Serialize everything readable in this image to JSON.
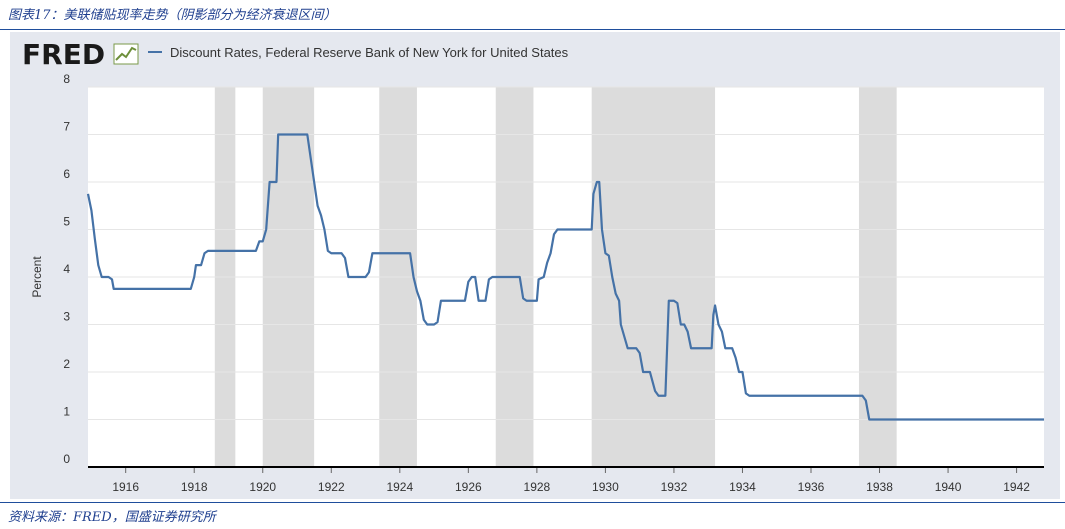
{
  "caption": "图表17：美联储贴现率走势（阴影部分为经济衰退区间）",
  "source": "资料来源：FRED，国盛证券研究所",
  "brand": "FRED",
  "colors": {
    "line": "#4572a7",
    "recession": "#dcdcdc",
    "plot_bg": "#ffffff",
    "frame_bg": "#e5e8ef",
    "axis": "#000000"
  },
  "icons": {
    "logo": "fred-graph-icon"
  },
  "chart_data": {
    "type": "line",
    "series": [
      {
        "name": "Discount Rates, Federal Reserve Bank of New York for United States",
        "points": [
          [
            1914.9,
            5.75
          ],
          [
            1915.0,
            5.4
          ],
          [
            1915.1,
            4.8
          ],
          [
            1915.2,
            4.25
          ],
          [
            1915.3,
            4.0
          ],
          [
            1915.5,
            4.0
          ],
          [
            1915.6,
            3.95
          ],
          [
            1915.65,
            3.75
          ],
          [
            1916.0,
            3.75
          ],
          [
            1917.0,
            3.75
          ],
          [
            1917.9,
            3.75
          ],
          [
            1918.0,
            4.0
          ],
          [
            1918.05,
            4.25
          ],
          [
            1918.2,
            4.25
          ],
          [
            1918.3,
            4.5
          ],
          [
            1918.4,
            4.55
          ],
          [
            1919.0,
            4.55
          ],
          [
            1919.5,
            4.55
          ],
          [
            1919.8,
            4.55
          ],
          [
            1919.9,
            4.75
          ],
          [
            1920.0,
            4.75
          ],
          [
            1920.1,
            5.0
          ],
          [
            1920.2,
            6.0
          ],
          [
            1920.4,
            6.0
          ],
          [
            1920.45,
            7.0
          ],
          [
            1921.0,
            7.0
          ],
          [
            1921.3,
            7.0
          ],
          [
            1921.4,
            6.5
          ],
          [
            1921.5,
            6.0
          ],
          [
            1921.6,
            5.5
          ],
          [
            1921.7,
            5.3
          ],
          [
            1921.8,
            5.0
          ],
          [
            1921.9,
            4.55
          ],
          [
            1922.0,
            4.5
          ],
          [
            1922.3,
            4.5
          ],
          [
            1922.4,
            4.4
          ],
          [
            1922.5,
            4.0
          ],
          [
            1922.7,
            4.0
          ],
          [
            1923.0,
            4.0
          ],
          [
            1923.1,
            4.1
          ],
          [
            1923.2,
            4.5
          ],
          [
            1923.5,
            4.5
          ],
          [
            1924.0,
            4.5
          ],
          [
            1924.3,
            4.5
          ],
          [
            1924.4,
            4.0
          ],
          [
            1924.5,
            3.7
          ],
          [
            1924.6,
            3.5
          ],
          [
            1924.7,
            3.1
          ],
          [
            1924.8,
            3.0
          ],
          [
            1925.0,
            3.0
          ],
          [
            1925.1,
            3.05
          ],
          [
            1925.2,
            3.5
          ],
          [
            1925.5,
            3.5
          ],
          [
            1925.8,
            3.5
          ],
          [
            1925.9,
            3.5
          ],
          [
            1926.0,
            3.9
          ],
          [
            1926.1,
            4.0
          ],
          [
            1926.2,
            4.0
          ],
          [
            1926.3,
            3.5
          ],
          [
            1926.5,
            3.5
          ],
          [
            1926.6,
            3.95
          ],
          [
            1926.7,
            4.0
          ],
          [
            1927.0,
            4.0
          ],
          [
            1927.5,
            4.0
          ],
          [
            1927.6,
            3.55
          ],
          [
            1927.7,
            3.5
          ],
          [
            1928.0,
            3.5
          ],
          [
            1928.05,
            3.95
          ],
          [
            1928.2,
            4.0
          ],
          [
            1928.3,
            4.3
          ],
          [
            1928.4,
            4.5
          ],
          [
            1928.5,
            4.9
          ],
          [
            1928.6,
            5.0
          ],
          [
            1929.0,
            5.0
          ],
          [
            1929.4,
            5.0
          ],
          [
            1929.6,
            5.0
          ],
          [
            1929.65,
            5.75
          ],
          [
            1929.75,
            6.0
          ],
          [
            1929.82,
            6.0
          ],
          [
            1929.9,
            5.0
          ],
          [
            1929.95,
            4.75
          ],
          [
            1930.0,
            4.5
          ],
          [
            1930.1,
            4.45
          ],
          [
            1930.2,
            4.0
          ],
          [
            1930.3,
            3.65
          ],
          [
            1930.4,
            3.5
          ],
          [
            1930.45,
            3.0
          ],
          [
            1930.55,
            2.75
          ],
          [
            1930.65,
            2.5
          ],
          [
            1930.8,
            2.5
          ],
          [
            1930.9,
            2.5
          ],
          [
            1931.0,
            2.4
          ],
          [
            1931.1,
            2.0
          ],
          [
            1931.3,
            2.0
          ],
          [
            1931.45,
            1.6
          ],
          [
            1931.55,
            1.5
          ],
          [
            1931.75,
            1.5
          ],
          [
            1931.8,
            2.5
          ],
          [
            1931.85,
            3.5
          ],
          [
            1932.0,
            3.5
          ],
          [
            1932.1,
            3.45
          ],
          [
            1932.2,
            3.0
          ],
          [
            1932.3,
            3.0
          ],
          [
            1932.4,
            2.85
          ],
          [
            1932.5,
            2.5
          ],
          [
            1933.0,
            2.5
          ],
          [
            1933.1,
            2.5
          ],
          [
            1933.15,
            3.2
          ],
          [
            1933.2,
            3.4
          ],
          [
            1933.3,
            3.0
          ],
          [
            1933.4,
            2.85
          ],
          [
            1933.5,
            2.5
          ],
          [
            1933.7,
            2.5
          ],
          [
            1933.8,
            2.3
          ],
          [
            1933.9,
            2.0
          ],
          [
            1934.0,
            2.0
          ],
          [
            1934.1,
            1.55
          ],
          [
            1934.2,
            1.5
          ],
          [
            1935.0,
            1.5
          ],
          [
            1936.0,
            1.5
          ],
          [
            1937.0,
            1.5
          ],
          [
            1937.5,
            1.5
          ],
          [
            1937.6,
            1.4
          ],
          [
            1937.7,
            1.0
          ],
          [
            1938.0,
            1.0
          ],
          [
            1939.0,
            1.0
          ],
          [
            1940.0,
            1.0
          ],
          [
            1941.0,
            1.0
          ],
          [
            1942.0,
            1.0
          ],
          [
            1942.8,
            1.0
          ]
        ]
      }
    ],
    "recessions": [
      [
        1918.6,
        1919.2
      ],
      [
        1920.0,
        1921.5
      ],
      [
        1923.4,
        1924.5
      ],
      [
        1926.8,
        1927.9
      ],
      [
        1929.6,
        1933.2
      ],
      [
        1937.4,
        1938.5
      ]
    ],
    "xlim": [
      1914.9,
      1942.8
    ],
    "ylim": [
      0,
      8
    ],
    "x_ticks": [
      1916,
      1918,
      1920,
      1922,
      1924,
      1926,
      1928,
      1930,
      1932,
      1934,
      1936,
      1938,
      1940,
      1942
    ],
    "y_ticks": [
      0,
      1,
      2,
      3,
      4,
      5,
      6,
      7,
      8
    ],
    "ylabel": "Percent",
    "xlabel": "",
    "grid": "horizontal",
    "legend_placement": "top-left"
  }
}
